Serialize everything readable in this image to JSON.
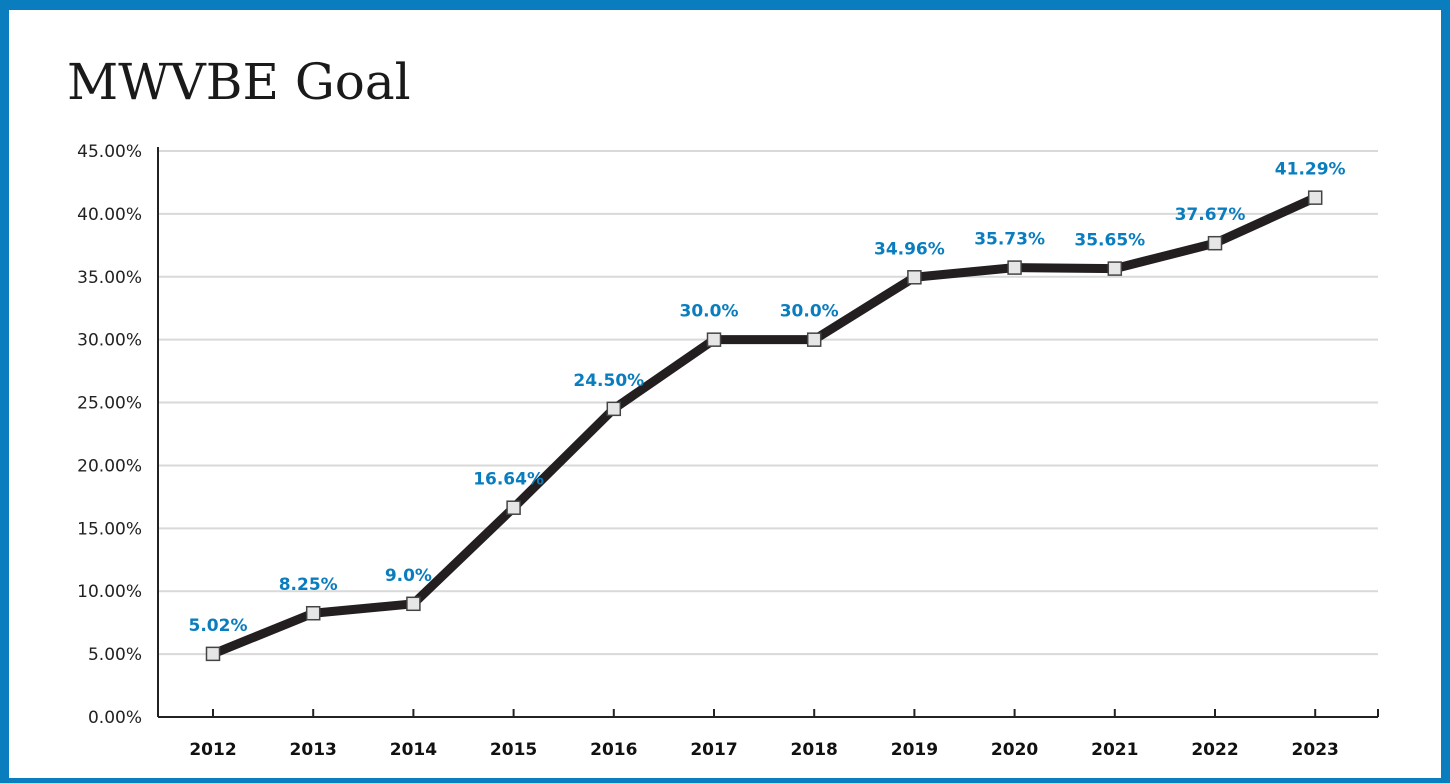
{
  "chart_data": {
    "type": "line",
    "title": "MWVBE Goal",
    "xlabel": "",
    "ylabel": "",
    "ylim": [
      0,
      45
    ],
    "y_ticks": [
      "0.00%",
      "5.00%",
      "10.00%",
      "15.00%",
      "20.00%",
      "25.00%",
      "30.00%",
      "35.00%",
      "40.00%",
      "45.00%"
    ],
    "grid": true,
    "categories": [
      "2012",
      "2013",
      "2014",
      "2015",
      "2016",
      "2017",
      "2018",
      "2019",
      "2020",
      "2021",
      "2022",
      "2023"
    ],
    "series": [
      {
        "values": [
          5.02,
          8.25,
          9.0,
          16.64,
          24.5,
          30.0,
          30.0,
          34.96,
          35.73,
          35.65,
          37.67,
          41.29
        ],
        "labels": [
          "5.02%",
          "8.25%",
          "9.0%",
          "16.64%",
          "24.50%",
          "30.0%",
          "30.0%",
          "34.96%",
          "35.73%",
          "35.65%",
          "37.67%",
          "41.29%"
        ]
      }
    ],
    "colors": {
      "frame": "#0a7dbf",
      "line": "#231f20",
      "marker_fill": "#e6e6e6",
      "marker_stroke": "#444444",
      "data_label": "#0a7dbf",
      "grid": "#d9d9d9"
    }
  }
}
